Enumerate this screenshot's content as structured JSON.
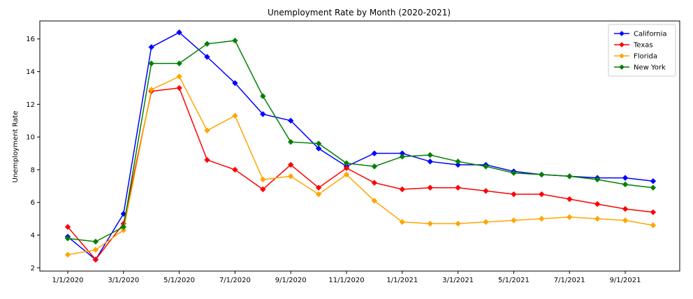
{
  "chart_data": {
    "type": "line",
    "title": "Unemployment Rate by Month (2020-2021)",
    "xlabel": "",
    "ylabel": "Unemployment Rate",
    "ylim": [
      1.8,
      17.1
    ],
    "yticks": [
      2,
      4,
      6,
      8,
      10,
      12,
      14,
      16
    ],
    "x": [
      "1/1/2020",
      "2/1/2020",
      "3/1/2020",
      "4/1/2020",
      "5/1/2020",
      "6/1/2020",
      "7/1/2020",
      "8/1/2020",
      "9/1/2020",
      "10/1/2020",
      "11/1/2020",
      "12/1/2020",
      "1/1/2021",
      "2/1/2021",
      "3/1/2021",
      "4/1/2021",
      "5/1/2021",
      "6/1/2021",
      "7/1/2021",
      "8/1/2021",
      "9/1/2021",
      "10/1/2021"
    ],
    "xtick_labels": [
      "1/1/2020",
      "3/1/2020",
      "5/1/2020",
      "7/1/2020",
      "9/1/2020",
      "11/1/2020",
      "1/1/2021",
      "3/1/2021",
      "5/1/2021",
      "7/1/2021",
      "9/1/2021"
    ],
    "legend_position": "top-right",
    "grid": false,
    "series": [
      {
        "name": "California",
        "color": "#0000ff",
        "values": [
          3.9,
          2.5,
          5.3,
          15.5,
          16.4,
          14.9,
          13.3,
          11.4,
          11.0,
          9.3,
          8.2,
          9.0,
          9.0,
          8.5,
          8.3,
          8.3,
          7.9,
          7.7,
          7.6,
          7.5,
          7.5,
          7.3
        ]
      },
      {
        "name": "Texas",
        "color": "#ff0000",
        "values": [
          4.5,
          2.5,
          4.7,
          12.8,
          13.0,
          8.6,
          8.0,
          6.8,
          8.3,
          6.9,
          8.1,
          7.2,
          6.8,
          6.9,
          6.9,
          6.7,
          6.5,
          6.5,
          6.2,
          5.9,
          5.6,
          5.4
        ]
      },
      {
        "name": "Florida",
        "color": "#ffa500",
        "values": [
          2.8,
          3.1,
          4.3,
          12.9,
          13.7,
          10.4,
          11.3,
          7.4,
          7.6,
          6.5,
          7.7,
          6.1,
          4.8,
          4.7,
          4.7,
          4.8,
          4.9,
          5.0,
          5.1,
          5.0,
          4.9,
          4.6
        ]
      },
      {
        "name": "New York",
        "color": "#008000",
        "values": [
          3.8,
          3.6,
          4.5,
          14.5,
          14.5,
          15.7,
          15.9,
          12.5,
          9.7,
          9.6,
          8.4,
          8.2,
          8.8,
          8.9,
          8.5,
          8.2,
          7.8,
          7.7,
          7.6,
          7.4,
          7.1,
          6.9
        ]
      }
    ]
  }
}
